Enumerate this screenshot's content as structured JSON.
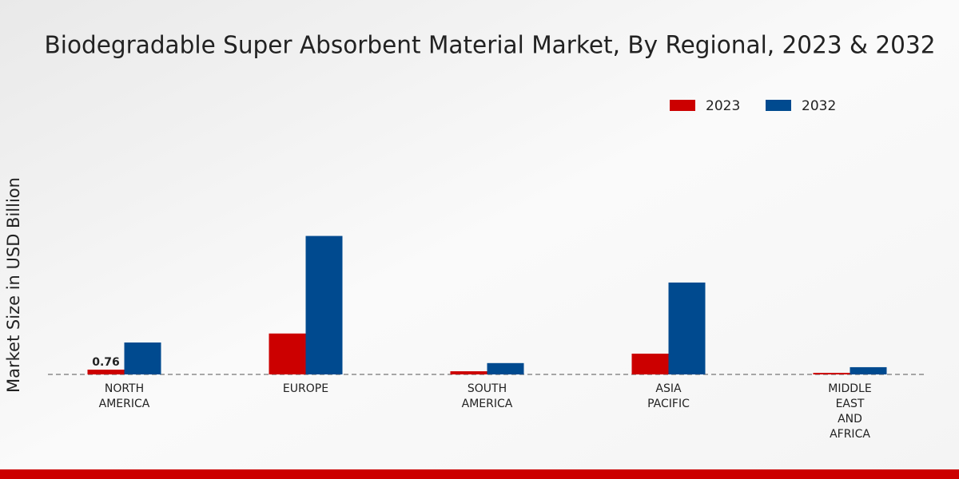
{
  "chart_data": {
    "type": "bar",
    "title": "Biodegradable Super Absorbent Material Market, By Regional, 2023 & 2032",
    "y_label": "Market Size in USD Billion",
    "categories": [
      "NORTH AMERICA",
      "EUROPE",
      "SOUTH AMERICA",
      "ASIA PACIFIC",
      "MIDDLE EAST AND AFRICA"
    ],
    "series": [
      {
        "name": "2023",
        "color": "#cc0000",
        "values": [
          0.76,
          6.5,
          0.5,
          3.3,
          0.25
        ]
      },
      {
        "name": "2032",
        "color": "#004a8f",
        "values": [
          5.07,
          22.0,
          1.8,
          14.6,
          1.15
        ]
      }
    ],
    "value_labels_shown": [
      [
        0
      ]
    ],
    "ylim": [
      0,
      43
    ],
    "legend": "top-right"
  }
}
